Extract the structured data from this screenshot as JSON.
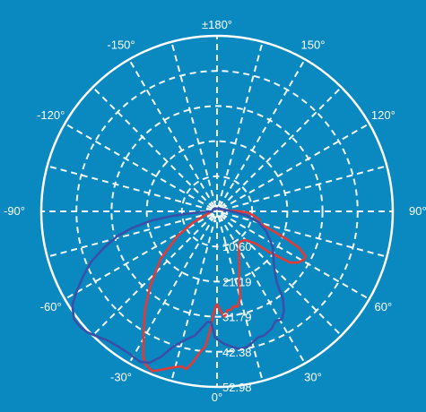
{
  "chart_data": {
    "type": "polar-line",
    "angle_labels": [
      "±180°",
      "150°",
      "120°",
      "90°",
      "60°",
      "30°",
      "0°",
      "-30°",
      "-60°",
      "-90°",
      "-120°",
      "-150°"
    ],
    "angle_label_degrees": [
      180,
      150,
      120,
      90,
      60,
      30,
      0,
      -30,
      -60,
      -90,
      -120,
      -150
    ],
    "radial_ticks": [
      "10.60",
      "21.19",
      "31.79",
      "42.38",
      "52.98"
    ],
    "radial_tick_values": [
      10.6,
      21.19,
      31.79,
      42.38,
      52.98
    ],
    "rmax": 52.98,
    "radial_grid": [
      1.5,
      3.0,
      10.6,
      21.19,
      31.79,
      42.38,
      52.98
    ],
    "angular_grid_step_deg": 15,
    "grid": true,
    "series": [
      {
        "color": "#e53935",
        "points": [
          [
            -90,
            1.5
          ],
          [
            -75,
            3.2
          ],
          [
            -65,
            8
          ],
          [
            -58,
            14
          ],
          [
            -50,
            22
          ],
          [
            -42,
            30
          ],
          [
            -36,
            37
          ],
          [
            -31,
            43
          ],
          [
            -27,
            49
          ],
          [
            -25,
            51
          ],
          [
            -22,
            52
          ],
          [
            -19,
            50.5
          ],
          [
            -16,
            49
          ],
          [
            -13,
            48
          ],
          [
            -11,
            48.5
          ],
          [
            -9,
            46
          ],
          [
            -7,
            43
          ],
          [
            -5,
            41
          ],
          [
            -4,
            38
          ],
          [
            -3,
            35
          ],
          [
            -2,
            31
          ],
          [
            -1,
            29
          ],
          [
            0,
            28
          ],
          [
            2,
            30
          ],
          [
            4,
            32
          ],
          [
            6,
            30
          ],
          [
            8,
            30
          ],
          [
            10,
            29
          ],
          [
            12,
            29.5
          ],
          [
            15,
            27
          ],
          [
            18,
            21.5
          ],
          [
            22,
            18
          ],
          [
            28,
            14
          ],
          [
            36,
            11.5
          ],
          [
            44,
            12
          ],
          [
            50,
            15
          ],
          [
            52,
            20
          ],
          [
            55,
            27
          ],
          [
            58,
            29
          ],
          [
            61,
            30
          ],
          [
            63,
            30
          ],
          [
            66,
            27
          ],
          [
            68,
            23
          ],
          [
            70,
            19
          ],
          [
            72,
            16
          ],
          [
            75,
            13
          ],
          [
            77,
            13
          ],
          [
            79,
            13
          ],
          [
            81,
            12
          ],
          [
            84,
            11
          ],
          [
            88,
            9
          ],
          [
            90,
            7
          ],
          [
            93,
            4
          ],
          [
            110,
            1.5
          ],
          [
            150,
            1
          ],
          [
            180,
            0.8
          ],
          [
            -150,
            1
          ],
          [
            -120,
            1.3
          ],
          [
            -90,
            1.5
          ]
        ]
      },
      {
        "color": "#3a50a8",
        "points": [
          [
            -90,
            1.5
          ],
          [
            -86,
            8
          ],
          [
            -84,
            14
          ],
          [
            -82,
            20
          ],
          [
            -79,
            26
          ],
          [
            -76,
            31
          ],
          [
            -72,
            36
          ],
          [
            -68,
            41
          ],
          [
            -64,
            45
          ],
          [
            -60,
            49
          ],
          [
            -57,
            52
          ],
          [
            -53,
            54
          ],
          [
            -50,
            54
          ],
          [
            -47,
            53.5
          ],
          [
            -43,
            52
          ],
          [
            -40,
            51
          ],
          [
            -36,
            50.5
          ],
          [
            -31,
            50.5
          ],
          [
            -27,
            51
          ],
          [
            -24,
            50
          ],
          [
            -21,
            47
          ],
          [
            -18,
            43
          ],
          [
            -14,
            40
          ],
          [
            -10,
            38
          ],
          [
            -8,
            36
          ],
          [
            -5,
            33.5
          ],
          [
            -3,
            33.5
          ],
          [
            -1,
            38
          ],
          [
            1,
            39
          ],
          [
            3,
            40
          ],
          [
            6,
            41
          ],
          [
            9,
            42
          ],
          [
            12,
            42
          ],
          [
            15,
            41
          ],
          [
            18,
            40
          ],
          [
            21,
            40
          ],
          [
            25,
            39
          ],
          [
            28,
            37.5
          ],
          [
            31,
            38
          ],
          [
            34,
            36
          ],
          [
            37,
            33
          ],
          [
            40,
            28
          ],
          [
            44,
            25
          ],
          [
            48,
            23
          ],
          [
            52,
            21.5
          ],
          [
            57,
            20
          ],
          [
            62,
            18
          ],
          [
            68,
            16
          ],
          [
            75,
            13
          ],
          [
            82,
            9
          ],
          [
            88,
            5
          ],
          [
            95,
            3
          ],
          [
            120,
            1.5
          ],
          [
            150,
            1
          ],
          [
            180,
            0.8
          ],
          [
            -150,
            1
          ],
          [
            -120,
            1.3
          ],
          [
            -90,
            1.5
          ]
        ]
      }
    ]
  }
}
